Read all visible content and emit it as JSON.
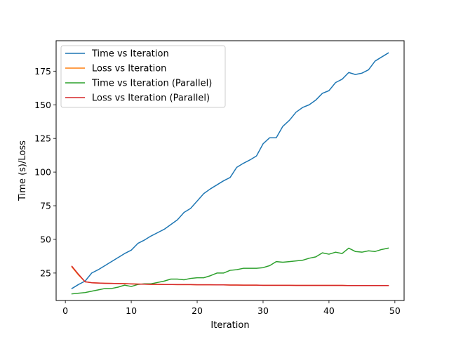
{
  "chart_data": {
    "type": "line",
    "title": "",
    "xlabel": "Iteration",
    "ylabel": "Time (s)/Loss",
    "xlim": [
      -1.4,
      51.4
    ],
    "ylim": [
      4.6,
      197.6
    ],
    "xticks": [
      0,
      10,
      20,
      30,
      40,
      50
    ],
    "yticks": [
      25,
      50,
      75,
      100,
      125,
      150,
      175
    ],
    "grid": false,
    "legend_position": "upper-left",
    "x": [
      1,
      2,
      3,
      4,
      5,
      6,
      7,
      8,
      9,
      10,
      11,
      12,
      13,
      14,
      15,
      16,
      17,
      18,
      19,
      20,
      21,
      22,
      23,
      24,
      25,
      26,
      27,
      28,
      29,
      30,
      31,
      32,
      33,
      34,
      35,
      36,
      37,
      38,
      39,
      40,
      41,
      42,
      43,
      44,
      45,
      46,
      47,
      48,
      49
    ],
    "series": [
      {
        "name": "Time vs Iteration",
        "color": "#1f77b4",
        "values": [
          13.5,
          16.5,
          19.0,
          25.0,
          27.5,
          30.5,
          33.5,
          36.5,
          39.5,
          42.0,
          47.0,
          49.5,
          52.5,
          55.0,
          57.5,
          61.0,
          64.5,
          70.0,
          73.0,
          78.5,
          84.0,
          87.5,
          90.5,
          93.5,
          96.0,
          103.5,
          106.5,
          109.0,
          112.0,
          121.0,
          125.5,
          125.5,
          134.0,
          138.5,
          144.5,
          148.0,
          150.0,
          153.5,
          158.5,
          160.5,
          166.5,
          169.0,
          174.0,
          172.5,
          173.5,
          176.0,
          182.5,
          185.5,
          188.5
        ]
      },
      {
        "name": "Loss vs Iteration",
        "color": "#ff7f0e",
        "values": [
          29.5,
          23.5,
          18.5,
          17.8,
          17.6,
          17.4,
          17.3,
          17.2,
          17.1,
          16.9,
          16.8,
          16.7,
          16.6,
          16.6,
          16.5,
          16.5,
          16.4,
          16.4,
          16.4,
          16.3,
          16.3,
          16.3,
          16.2,
          16.2,
          16.1,
          16.1,
          16.0,
          16.0,
          16.0,
          15.9,
          15.9,
          15.9,
          15.9,
          15.9,
          15.8,
          15.8,
          15.8,
          15.8,
          15.8,
          15.8,
          15.8,
          15.8,
          15.7,
          15.7,
          15.7,
          15.7,
          15.7,
          15.7,
          15.7
        ]
      },
      {
        "name": "Time vs Iteration (Parallel)",
        "color": "#2ca02c",
        "values": [
          9.5,
          10.0,
          10.5,
          11.5,
          12.5,
          13.5,
          13.5,
          14.5,
          16.0,
          15.0,
          16.5,
          17.0,
          17.0,
          18.0,
          19.0,
          20.5,
          20.5,
          20.0,
          21.0,
          21.5,
          21.5,
          23.0,
          25.0,
          25.0,
          27.0,
          27.5,
          28.5,
          28.5,
          28.5,
          29.0,
          30.5,
          33.5,
          33.0,
          33.5,
          34.0,
          34.5,
          36.0,
          37.0,
          40.0,
          39.0,
          40.5,
          39.5,
          43.5,
          41.0,
          40.5,
          41.5,
          41.0,
          42.5,
          43.5
        ]
      },
      {
        "name": "Loss vs Iteration (Parallel)",
        "color": "#d62728",
        "values": [
          30.0,
          24.0,
          18.5,
          17.8,
          17.6,
          17.4,
          17.3,
          17.2,
          17.1,
          16.9,
          16.8,
          16.7,
          16.6,
          16.6,
          16.5,
          16.5,
          16.4,
          16.4,
          16.4,
          16.3,
          16.3,
          16.3,
          16.2,
          16.2,
          16.1,
          16.1,
          16.0,
          16.0,
          16.0,
          15.9,
          15.9,
          15.9,
          15.9,
          15.9,
          15.8,
          15.8,
          15.8,
          15.8,
          15.8,
          15.8,
          15.8,
          15.8,
          15.7,
          15.7,
          15.7,
          15.7,
          15.7,
          15.7,
          15.7
        ]
      }
    ]
  }
}
